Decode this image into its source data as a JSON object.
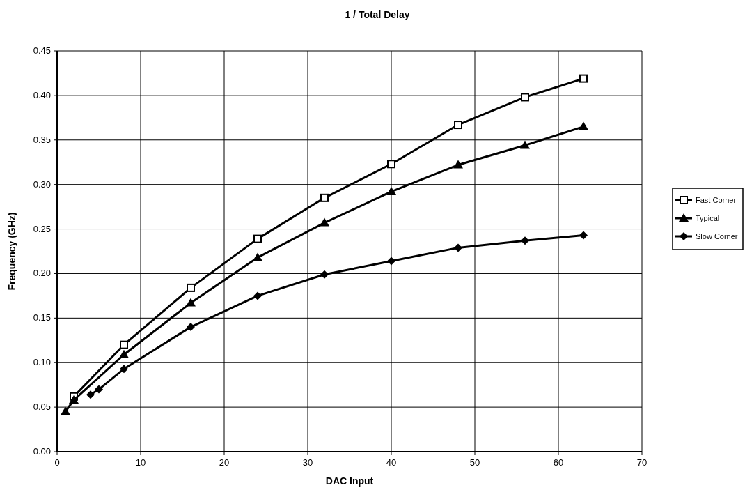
{
  "chart_data": {
    "type": "line",
    "title": "1 / Total Delay",
    "xlabel": "DAC Input",
    "ylabel": "Frequency (GHz)",
    "xlim": [
      0,
      70
    ],
    "xticks": [
      0,
      10,
      20,
      30,
      40,
      50,
      60,
      70
    ],
    "ylim": [
      0,
      0.45
    ],
    "yticks": [
      {
        "value": 0,
        "label": "0.00"
      },
      {
        "value": 0.05,
        "label": "0.05"
      },
      {
        "value": 0.1,
        "label": "0.10"
      },
      {
        "value": 0.15,
        "label": "0.15"
      },
      {
        "value": 0.2,
        "label": "0.20"
      },
      {
        "value": 0.25,
        "label": "0.25"
      },
      {
        "value": 0.3,
        "label": "0.30"
      },
      {
        "value": 0.35,
        "label": "0.35"
      },
      {
        "value": 0.4,
        "label": "0.40"
      },
      {
        "value": 0.45,
        "label": "0.45"
      }
    ],
    "grid": true,
    "legend": "right",
    "line_style": "solid",
    "series": [
      {
        "name": "Fast Corner",
        "color": "#000000",
        "marker": "square",
        "x": [
          2,
          8,
          16,
          24,
          32,
          40,
          48,
          56,
          63
        ],
        "values": [
          0.062,
          0.12,
          0.184,
          0.239,
          0.285,
          0.323,
          0.367,
          0.398,
          0.419
        ]
      },
      {
        "name": "Typical",
        "color": "#000000",
        "marker": "triangle",
        "x": [
          1,
          2,
          8,
          16,
          24,
          32,
          40,
          48,
          56,
          63
        ],
        "values": [
          0.045,
          0.058,
          0.109,
          0.167,
          0.218,
          0.257,
          0.292,
          0.322,
          0.344,
          0.365
        ]
      },
      {
        "name": "Slow Corner",
        "color": "#000000",
        "marker": "diamond",
        "x": [
          4,
          5,
          8,
          16,
          24,
          32,
          40,
          48,
          56,
          63
        ],
        "values": [
          0.064,
          0.07,
          0.093,
          0.14,
          0.175,
          0.199,
          0.214,
          0.229,
          0.237,
          0.243
        ]
      }
    ]
  }
}
